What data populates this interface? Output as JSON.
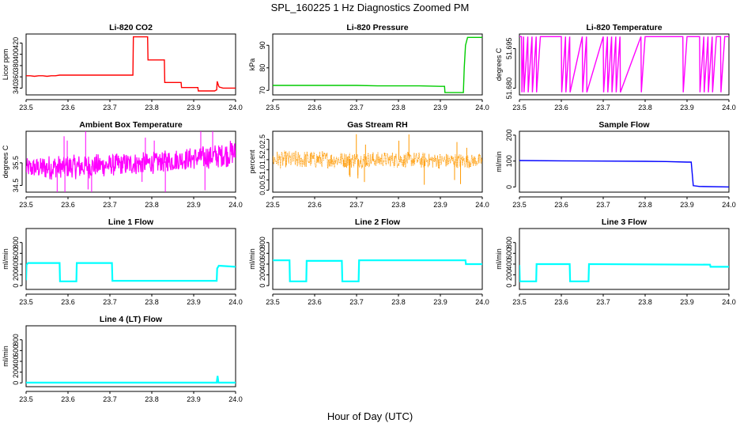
{
  "title": "SPL_160225  1 Hz Diagnostics Zoomed PM",
  "xlabel": "Hour of Day (UTC)",
  "chart_data": [
    {
      "type": "line",
      "title": "Li-820 CO2",
      "ylabel": "Licor ppm",
      "color": "#ff0000",
      "xlim": [
        23.5,
        24.0
      ],
      "xticks": [
        23.5,
        23.6,
        23.7,
        23.8,
        23.9,
        24.0
      ],
      "xtick_labels": [
        "23.5",
        "23.6",
        "23.7",
        "23.8",
        "23.9",
        "24.0"
      ],
      "ylim": [
        328,
        436
      ],
      "yticks": [
        340,
        360,
        380,
        400,
        420
      ],
      "ytick_labels": [
        "340",
        "360",
        "380",
        "400",
        "420"
      ],
      "x": [
        23.5,
        23.51,
        23.52,
        23.53,
        23.54,
        23.55,
        23.56,
        23.57,
        23.58,
        23.6,
        23.65,
        23.7,
        23.755,
        23.756,
        23.79,
        23.791,
        23.83,
        23.831,
        23.87,
        23.871,
        23.91,
        23.911,
        23.95,
        23.955,
        23.956,
        23.96,
        23.961,
        23.97,
        24.0
      ],
      "y": [
        362,
        362,
        361,
        362,
        362,
        361,
        362,
        362,
        363,
        363,
        363,
        363,
        363,
        431,
        431,
        390,
        390,
        350,
        350,
        341,
        341,
        335,
        335,
        337,
        352,
        343,
        342,
        340,
        340
      ]
    },
    {
      "type": "line",
      "title": "Li-820 Pressure",
      "ylabel": "kPa",
      "color": "#00cc00",
      "xlim": [
        23.5,
        24.0
      ],
      "xticks": [
        23.5,
        23.6,
        23.7,
        23.8,
        23.9,
        24.0
      ],
      "xtick_labels": [
        "23.5",
        "23.6",
        "23.7",
        "23.8",
        "23.9",
        "24.0"
      ],
      "ylim": [
        68,
        95
      ],
      "yticks": [
        70,
        80,
        90
      ],
      "ytick_labels": [
        "70",
        "80",
        "90"
      ],
      "x": [
        23.5,
        23.6,
        23.7,
        23.75,
        23.8,
        23.85,
        23.9,
        23.91,
        23.911,
        23.955,
        23.957,
        23.96,
        23.965,
        23.97,
        24.0
      ],
      "y": [
        72.2,
        72.2,
        72.2,
        72.0,
        72.0,
        72.0,
        71.8,
        71.8,
        69,
        69,
        80,
        90,
        93.5,
        93.5,
        93.5
      ]
    },
    {
      "type": "line",
      "title": "Li-820 Temperature",
      "ylabel": "degrees C",
      "color": "#ff00ff",
      "xlim": [
        23.5,
        24.0
      ],
      "xticks": [
        23.5,
        23.6,
        23.7,
        23.8,
        23.9,
        24.0
      ],
      "xtick_labels": [
        "23.5",
        "23.6",
        "23.7",
        "23.8",
        "23.9",
        "24.0"
      ],
      "ylim": [
        51.6775,
        51.7005
      ],
      "yticks": [
        51.68,
        51.695
      ],
      "ytick_labels": [
        "51.680",
        "51.695"
      ],
      "x": [
        23.5,
        23.505,
        23.506,
        23.51,
        23.511,
        23.52,
        23.521,
        23.53,
        23.531,
        23.54,
        23.541,
        23.55,
        23.551,
        23.6,
        23.601,
        23.61,
        23.611,
        23.62,
        23.621,
        23.65,
        23.651,
        23.66,
        23.661,
        23.7,
        23.701,
        23.71,
        23.711,
        23.72,
        23.721,
        23.73,
        23.731,
        23.74,
        23.741,
        23.79,
        23.791,
        23.8,
        23.89,
        23.891,
        23.9,
        23.93,
        23.931,
        23.94,
        23.941,
        23.95,
        23.951,
        23.96,
        23.961,
        23.97,
        23.98,
        23.981,
        23.99,
        24.0
      ],
      "y": [
        51.6995,
        51.6995,
        51.6785,
        51.6995,
        51.6785,
        51.6995,
        51.6785,
        51.6995,
        51.6785,
        51.6995,
        51.6785,
        51.6995,
        51.6995,
        51.6995,
        51.6785,
        51.6995,
        51.6785,
        51.6995,
        51.6785,
        51.6995,
        51.6785,
        51.6995,
        51.6785,
        51.6995,
        51.6785,
        51.6995,
        51.6785,
        51.6995,
        51.6785,
        51.6995,
        51.6785,
        51.6995,
        51.6785,
        51.6995,
        51.6785,
        51.6995,
        51.6995,
        51.6785,
        51.6995,
        51.6995,
        51.6785,
        51.6995,
        51.6785,
        51.6995,
        51.6785,
        51.6995,
        51.6785,
        51.6995,
        51.6995,
        51.6785,
        51.6995,
        51.6995
      ]
    },
    {
      "type": "line",
      "title": "Ambient Box Temperature",
      "ylabel": "degrees C",
      "color": "#ff00ff",
      "xlim": [
        23.5,
        24.0
      ],
      "xticks": [
        23.5,
        23.6,
        23.7,
        23.8,
        23.9,
        24.0
      ],
      "xtick_labels": [
        "23.5",
        "23.6",
        "23.7",
        "23.8",
        "23.9",
        "24.0"
      ],
      "ylim": [
        34.2,
        36.9
      ],
      "yticks": [
        34.5,
        35.5
      ],
      "ytick_labels": [
        "34.5",
        "35.5"
      ],
      "x": [
        23.5,
        23.55,
        23.6,
        23.65,
        23.7,
        23.75,
        23.8,
        23.85,
        23.9,
        23.95,
        24.0
      ],
      "y": [
        35.25,
        35.3,
        35.3,
        35.35,
        35.4,
        35.45,
        35.5,
        35.6,
        35.7,
        35.8,
        35.95
      ],
      "band": [
        0.45,
        0.55,
        0.55,
        0.55,
        0.5,
        0.5,
        0.5,
        0.5,
        0.5,
        0.55,
        0.6
      ]
    },
    {
      "type": "scatter",
      "title": "Gas Stream RH",
      "ylabel": "percent",
      "color": "#ff9900",
      "xlim": [
        23.5,
        24.0
      ],
      "xticks": [
        23.5,
        23.6,
        23.7,
        23.8,
        23.9,
        24.0
      ],
      "xtick_labels": [
        "23.5",
        "23.6",
        "23.7",
        "23.8",
        "23.9",
        "24.0"
      ],
      "ylim": [
        -0.1,
        2.9
      ],
      "yticks": [
        0.0,
        0.5,
        1.0,
        1.5,
        2.0,
        2.5
      ],
      "ytick_labels": [
        "0.0",
        "0.5",
        "1.0",
        "1.5",
        "2.0",
        "2.5"
      ],
      "x": [
        23.5,
        23.6,
        23.7,
        23.8,
        23.9,
        24.0
      ],
      "y": [
        1.5,
        1.5,
        1.5,
        1.5,
        1.45,
        1.45
      ],
      "band": [
        0.45,
        0.45,
        0.4,
        0.4,
        0.4,
        0.35
      ]
    },
    {
      "type": "line",
      "title": "Sample Flow",
      "ylabel": "ml/min",
      "color": "#0000ff",
      "xlim": [
        23.5,
        24.0
      ],
      "xticks": [
        23.5,
        23.6,
        23.7,
        23.8,
        23.9,
        24.0
      ],
      "xtick_labels": [
        "23.5",
        "23.6",
        "23.7",
        "23.8",
        "23.9",
        "24.0"
      ],
      "ylim": [
        -20,
        215
      ],
      "yticks": [
        0,
        100,
        200
      ],
      "ytick_labels": [
        "0",
        "100",
        "200"
      ],
      "x": [
        23.5,
        23.6,
        23.7,
        23.8,
        23.85,
        23.9,
        23.91,
        23.915,
        23.93,
        24.0
      ],
      "y": [
        102,
        101,
        100,
        99,
        98,
        96,
        96,
        5,
        2,
        0
      ]
    },
    {
      "type": "line",
      "title": "Line 1 Flow",
      "ylabel": "ml/min",
      "color": "#00ffff",
      "xlim": [
        23.5,
        24.0
      ],
      "xticks": [
        23.5,
        23.6,
        23.7,
        23.8,
        23.9,
        24.0
      ],
      "xtick_labels": [
        "23.5",
        "23.6",
        "23.7",
        "23.8",
        "23.9",
        "24.0"
      ],
      "ylim": [
        -70,
        1060
      ],
      "yticks": [
        0,
        200,
        400,
        600,
        800
      ],
      "ytick_labels": [
        "0",
        "200",
        "400",
        "600",
        "800"
      ],
      "x": [
        23.5,
        23.501,
        23.505,
        23.58,
        23.581,
        23.62,
        23.621,
        23.705,
        23.706,
        23.955,
        23.956,
        23.96,
        24.0
      ],
      "y": [
        100,
        390,
        420,
        420,
        80,
        80,
        420,
        420,
        90,
        90,
        320,
        370,
        350
      ]
    },
    {
      "type": "line",
      "title": "Line 2 Flow",
      "ylabel": "ml/min",
      "color": "#00ffff",
      "xlim": [
        23.5,
        24.0
      ],
      "xticks": [
        23.5,
        23.6,
        23.7,
        23.8,
        23.9,
        24.0
      ],
      "xtick_labels": [
        "23.5",
        "23.6",
        "23.7",
        "23.8",
        "23.9",
        "24.0"
      ],
      "ylim": [
        -70,
        1060
      ],
      "yticks": [
        0,
        200,
        400,
        600,
        800
      ],
      "ytick_labels": [
        "0",
        "200",
        "400",
        "600",
        "800"
      ],
      "x": [
        23.5,
        23.54,
        23.541,
        23.58,
        23.581,
        23.665,
        23.666,
        23.705,
        23.706,
        23.96,
        23.961,
        24.0
      ],
      "y": [
        470,
        470,
        80,
        80,
        460,
        460,
        80,
        80,
        470,
        470,
        400,
        400
      ]
    },
    {
      "type": "line",
      "title": "Line 3 Flow",
      "ylabel": "ml/min",
      "color": "#00ffff",
      "xlim": [
        23.5,
        24.0
      ],
      "xticks": [
        23.5,
        23.6,
        23.7,
        23.8,
        23.9,
        24.0
      ],
      "xtick_labels": [
        "23.5",
        "23.6",
        "23.7",
        "23.8",
        "23.9",
        "24.0"
      ],
      "ylim": [
        -70,
        1060
      ],
      "yticks": [
        0,
        200,
        400,
        600,
        800
      ],
      "ytick_labels": [
        "0",
        "200",
        "400",
        "600",
        "800"
      ],
      "x": [
        23.5,
        23.501,
        23.505,
        23.54,
        23.541,
        23.62,
        23.621,
        23.665,
        23.666,
        23.955,
        23.956,
        24.0
      ],
      "y": [
        380,
        80,
        80,
        80,
        400,
        400,
        80,
        80,
        400,
        390,
        350,
        350
      ]
    },
    {
      "type": "line",
      "title": "Line 4 (LT) Flow",
      "ylabel": "ml/min",
      "color": "#00ffff",
      "xlim": [
        23.5,
        24.0
      ],
      "xticks": [
        23.5,
        23.6,
        23.7,
        23.8,
        23.9,
        24.0
      ],
      "xtick_labels": [
        "23.5",
        "23.6",
        "23.7",
        "23.8",
        "23.9",
        "24.0"
      ],
      "ylim": [
        -70,
        1060
      ],
      "yticks": [
        0,
        200,
        400,
        600,
        800
      ],
      "ytick_labels": [
        "0",
        "200",
        "400",
        "600",
        "800"
      ],
      "x": [
        23.5,
        23.6,
        23.7,
        23.8,
        23.9,
        23.955,
        23.957,
        23.959,
        23.961,
        24.0
      ],
      "y": [
        5,
        5,
        5,
        5,
        5,
        5,
        130,
        5,
        5,
        5
      ]
    }
  ]
}
